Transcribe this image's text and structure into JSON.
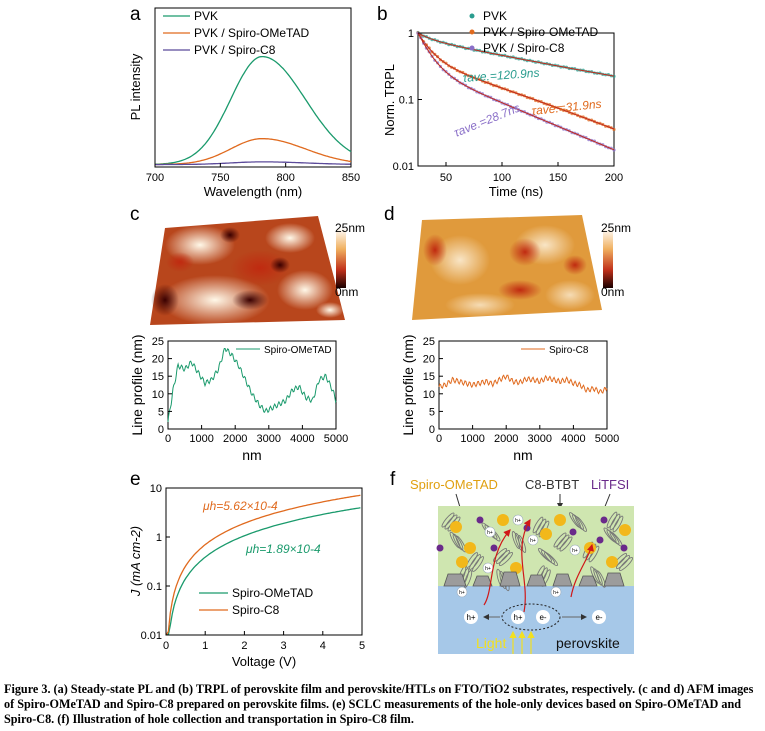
{
  "panels": {
    "a": {
      "letter": "a",
      "chart_data": {
        "type": "line",
        "xlabel": "Wavelength (nm)",
        "ylabel": "PL intensity",
        "xlim": [
          700,
          850
        ],
        "xticks": [
          "700",
          "750",
          "800",
          "850"
        ],
        "legend": "top-left",
        "series": [
          {
            "name": "PVK",
            "color": "#1a9a6c",
            "peak": 782,
            "amplitude": 1.0
          },
          {
            "name": "PVK / Spiro-OMeTAD",
            "color": "#e06a1e",
            "peak": 782,
            "amplitude": 0.24
          },
          {
            "name": "PVK / Spiro-C8",
            "color": "#5b4a9a",
            "peak": 782,
            "amplitude": 0.025
          }
        ]
      }
    },
    "b": {
      "letter": "b",
      "chart_data": {
        "type": "scatter",
        "xlabel": "Time (ns)",
        "ylabel": "Norm. TRPL",
        "xlim": [
          25,
          200
        ],
        "ylim": [
          0.01,
          1
        ],
        "yscale": "log",
        "xticks": [
          "50",
          "100",
          "150",
          "200"
        ],
        "yticks": [
          "0.01",
          "0.1",
          "1"
        ],
        "legend": "top-right",
        "series": [
          {
            "name": "PVK",
            "color": "#2a9d8f",
            "tau_label": "τave.=120.9ns",
            "tau": 120.9
          },
          {
            "name": "PVK / Spiro-OMeTAD",
            "color": "#e06a1e",
            "tau_label": "τave.=31.9ns",
            "tau": 31.9
          },
          {
            "name": "PVK / Spiro-C8",
            "color": "#8a6fc8",
            "tau_label": "τave.=28.7ns",
            "tau": 28.7
          }
        ]
      }
    },
    "c": {
      "letter": "c",
      "scale_top": "25nm",
      "scale_bottom": "0nm",
      "chart_data": {
        "type": "line",
        "xlabel": "nm",
        "ylabel": "Line profile (nm)",
        "xlim": [
          0,
          5000
        ],
        "ylim": [
          0,
          25
        ],
        "xticks": [
          "0",
          "1000",
          "2000",
          "3000",
          "4000",
          "5000"
        ],
        "yticks": [
          "0",
          "5",
          "10",
          "15",
          "20",
          "25"
        ],
        "series": [
          {
            "name": "Spiro-OMeTAD",
            "color": "#1a9a6c",
            "x": [
              0,
              150,
              300,
              500,
              700,
              900,
              1100,
              1300,
              1500,
              1700,
              1900,
              2100,
              2300,
              2500,
              2700,
              2900,
              3100,
              3300,
              3500,
              3700,
              3900,
              4100,
              4300,
              4500,
              4700,
              4900,
              5000
            ],
            "y": [
              2,
              11,
              18,
              17,
              19,
              16,
              13,
              14,
              17,
              23,
              21,
              18,
              14,
              10,
              7,
              5,
              6,
              7,
              8,
              11,
              12,
              9,
              8,
              14,
              15,
              11,
              8
            ]
          }
        ]
      }
    },
    "d": {
      "letter": "d",
      "scale_top": "25nm",
      "scale_bottom": "0nm",
      "chart_data": {
        "type": "line",
        "xlabel": "nm",
        "ylabel": "Line profile (nm)",
        "xlim": [
          0,
          5000
        ],
        "ylim": [
          0,
          25
        ],
        "xticks": [
          "0",
          "1000",
          "2000",
          "3000",
          "4000",
          "5000"
        ],
        "yticks": [
          "0",
          "5",
          "10",
          "15",
          "20",
          "25"
        ],
        "series": [
          {
            "name": "Spiro-C8",
            "color": "#e06a1e",
            "x": [
              0,
              200,
              400,
              600,
              800,
              1000,
              1200,
              1400,
              1600,
              1800,
              2000,
              2200,
              2400,
              2600,
              2800,
              3000,
              3200,
              3400,
              3600,
              3800,
              4000,
              4200,
              4400,
              4600,
              4800,
              5000
            ],
            "y": [
              12,
              12.5,
              14,
              13.5,
              13,
              12.5,
              13,
              13.5,
              12.8,
              14,
              15,
              13.5,
              13.2,
              14.2,
              14,
              13.5,
              14.5,
              14,
              13.5,
              14,
              13,
              12.5,
              11,
              11.5,
              10.5,
              11.5
            ]
          }
        ]
      }
    },
    "e": {
      "letter": "e",
      "chart_data": {
        "type": "line",
        "xlabel": "Voltage (V)",
        "ylabel": "J (mA cm-2)",
        "xlim": [
          0,
          5
        ],
        "ylim": [
          0.01,
          10
        ],
        "yscale": "log",
        "xticks": [
          "0",
          "1",
          "2",
          "3",
          "4",
          "5"
        ],
        "yticks": [
          "0.01",
          "0.1",
          "1",
          "10"
        ],
        "legend": "bottom-center",
        "series": [
          {
            "name": "Spiro-OMeTAD",
            "color": "#1a9a6c",
            "mobility_label": "μh=1.89×10-4",
            "mobility_value": "1.89×10-4",
            "J_at_5V": 4.0
          },
          {
            "name": "Spiro-C8",
            "color": "#e06a1e",
            "mobility_label": "μh=5.62×10-4",
            "mobility_value": "5.62×10-4",
            "J_at_5V": 7.2
          }
        ]
      }
    },
    "f": {
      "letter": "f",
      "labels": {
        "spiro": "Spiro-OMeTAD",
        "c8btbt": "C8-BTBT",
        "litfsi": "LiTFSI",
        "light": "Light",
        "perovskite": "perovskite",
        "hole": "h+",
        "electron": "e-"
      },
      "colors": {
        "spiro": "#f2b81a",
        "litfsi": "#6a2a8a",
        "film": "#cfe6b0",
        "perovskite": "#a6c8e8"
      }
    }
  },
  "caption": {
    "text": "Figure 3. (a) Steady-state PL and (b) TRPL of perovskite film and perovskite/HTLs on FTO/TiO2 substrates, respectively. (c and d) AFM images of Spiro-OMeTAD and Spiro-C8 prepared on perovskite films. (e) SCLC measurements of the hole-only devices based on Spiro-OMeTAD and Spiro-C8. (f) Illustration of hole collection and transportation in Spiro-C8 film."
  }
}
